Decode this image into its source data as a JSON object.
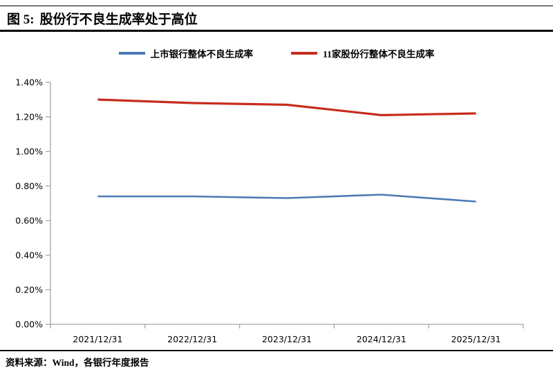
{
  "header": {
    "figure_label": "图 5:",
    "title": "股份行不良生成率处于高位"
  },
  "source": {
    "text": "资料来源：Wind，各银行年度报告"
  },
  "chart_data": {
    "type": "line",
    "title": "股份行不良生成率处于高位",
    "xlabel": "",
    "ylabel": "",
    "categories": [
      "2021/12/31",
      "2022/12/31",
      "2023/12/31",
      "2024/12/31",
      "2025/12/31"
    ],
    "series": [
      {
        "name": "上市银行整体不良生成率",
        "color": "#4C79B5",
        "values": [
          0.74,
          0.74,
          0.73,
          0.75,
          0.71
        ]
      },
      {
        "name": "11家股份行整体不良生成率",
        "color": "#C82B1E",
        "values": [
          1.3,
          1.28,
          1.27,
          1.21,
          1.22
        ]
      }
    ],
    "y_ticks": [
      "0.00%",
      "0.20%",
      "0.40%",
      "0.60%",
      "0.80%",
      "1.00%",
      "1.20%",
      "1.40%"
    ],
    "ylim": [
      0,
      1.4
    ],
    "unit": "%",
    "grid": false,
    "legend_position": "top",
    "axis_color": "#A6A6A6"
  }
}
